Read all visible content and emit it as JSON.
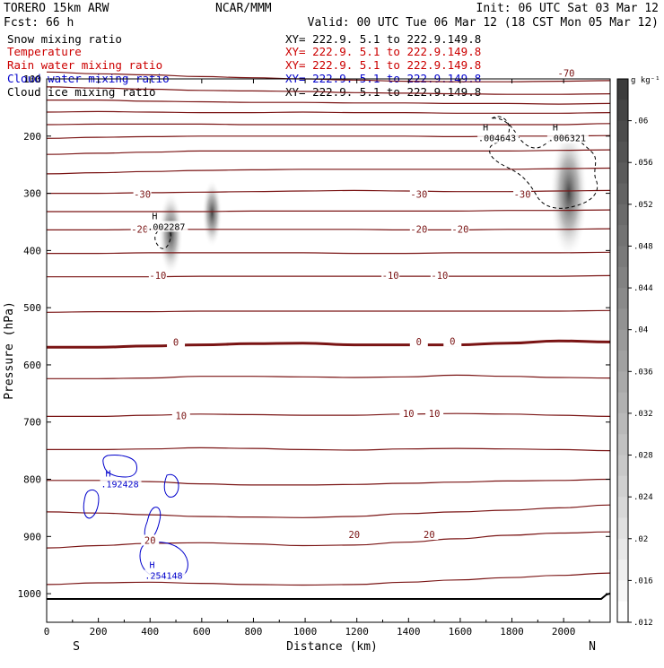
{
  "header": {
    "model": "TORERO  15km ARW",
    "center": "NCAR/MMM",
    "init": "Init: 06 UTC Sat 03 Mar 12",
    "fcst": "Fcst:   66 h",
    "valid": "Valid: 00 UTC Tue 06 Mar 12 (18 CST Mon 05 Mar 12)"
  },
  "fields": [
    {
      "name": "Snow mixing ratio",
      "xy": "XY= 222.9.  5.1 to 222.9.149.8",
      "color": "#000000"
    },
    {
      "name": "Temperature",
      "xy": "XY= 222.9.  5.1 to 222.9.149.8",
      "color": "#cc0000"
    },
    {
      "name": "Rain water mixing ratio",
      "xy": "XY= 222.9.  5.1 to 222.9.149.8",
      "color": "#cc0000"
    },
    {
      "name": "Cloud water mixing ratio",
      "xy": "XY= 222.9.  5.1 to 222.9.149.8",
      "color": "#0000cc"
    },
    {
      "name": "Cloud ice mixing ratio",
      "xy": "XY= 222.9.  5.1 to 222.9.149.8",
      "color": "#000000"
    }
  ],
  "colorbar": {
    "unit": "g kg⁻¹",
    "labels": [
      ".06",
      ".056",
      ".052",
      ".048",
      ".044",
      ".04",
      ".036",
      ".032",
      ".028",
      ".024",
      ".02",
      ".016",
      ".012"
    ]
  },
  "chart_data": {
    "type": "contour",
    "xlabel": "Distance (km)",
    "ylabel": "Pressure (hPa)",
    "xlim": [
      0,
      2180
    ],
    "ylim": [
      1050,
      100
    ],
    "x_ticks": [
      0,
      200,
      400,
      600,
      800,
      1000,
      1200,
      1400,
      1600,
      1800,
      2000
    ],
    "y_ticks": [
      100,
      200,
      300,
      400,
      500,
      600,
      700,
      800,
      900,
      1000
    ],
    "x_tick_labels": [
      "0",
      "200",
      "400",
      "600",
      "800",
      "1000",
      "1200",
      "1400",
      "1600",
      "1800",
      "2000"
    ],
    "y_tick_labels": [
      "100",
      "200",
      "300",
      "400",
      "500",
      "600",
      "700",
      "800",
      "900",
      "1000"
    ],
    "endpoint_labels": {
      "left": "S",
      "right": "N"
    },
    "temperature_contours": [
      {
        "level": -70,
        "p": [
          88,
          91,
          93,
          96,
          98,
          100,
          102,
          104,
          105,
          105,
          104,
          103
        ]
      },
      {
        "level": -65,
        "p": [
          114,
          116,
          118,
          120,
          121,
          122,
          124,
          125,
          126,
          127,
          127,
          126
        ]
      },
      {
        "level": -60,
        "p": [
          137,
          137,
          139,
          140,
          141,
          141,
          142,
          142,
          143,
          143,
          144,
          143
        ]
      },
      {
        "level": -55,
        "p": [
          158,
          157,
          158,
          159,
          159,
          158,
          159,
          159,
          160,
          160,
          160,
          159
        ]
      },
      {
        "level": -50,
        "p": [
          180,
          179,
          179,
          179,
          180,
          180,
          180,
          180,
          180,
          180,
          180,
          178
        ]
      },
      {
        "level": -45,
        "p": [
          204,
          202,
          201,
          200,
          200,
          200,
          200,
          200,
          201,
          200,
          200,
          199
        ]
      },
      {
        "level": -40,
        "p": [
          232,
          230,
          228,
          226,
          226,
          226,
          226,
          226,
          226,
          226,
          225,
          224
        ]
      },
      {
        "level": -35,
        "p": [
          266,
          264,
          262,
          260,
          259,
          258,
          258,
          258,
          258,
          258,
          257,
          256
        ]
      },
      {
        "level": -30,
        "p": [
          300,
          300,
          299,
          298,
          297,
          296,
          295,
          296,
          297,
          297,
          296,
          295
        ]
      },
      {
        "level": -25,
        "p": [
          332,
          332,
          332,
          332,
          331,
          331,
          331,
          331,
          331,
          330,
          330,
          329
        ]
      },
      {
        "level": -20,
        "p": [
          364,
          364,
          363,
          363,
          363,
          363,
          363,
          364,
          364,
          363,
          363,
          362
        ]
      },
      {
        "level": -15,
        "p": [
          405,
          405,
          404,
          404,
          404,
          404,
          405,
          405,
          404,
          404,
          404,
          403
        ]
      },
      {
        "level": -10,
        "p": [
          446,
          446,
          446,
          445,
          445,
          445,
          445,
          445,
          445,
          445,
          445,
          444
        ]
      },
      {
        "level": -5,
        "p": [
          508,
          507,
          507,
          506,
          506,
          506,
          506,
          506,
          506,
          506,
          506,
          505
        ]
      },
      {
        "level": 0,
        "p": [
          569,
          569,
          567,
          565,
          563,
          562,
          565,
          565,
          565,
          562,
          558,
          560
        ]
      },
      {
        "level": 5,
        "p": [
          624,
          624,
          623,
          620,
          620,
          621,
          622,
          621,
          618,
          620,
          622,
          623
        ]
      },
      {
        "level": 10,
        "p": [
          690,
          690,
          688,
          686,
          687,
          688,
          688,
          686,
          685,
          686,
          688,
          690
        ]
      },
      {
        "level": 15,
        "p": [
          748,
          748,
          747,
          745,
          746,
          748,
          749,
          747,
          746,
          747,
          748,
          750
        ]
      },
      {
        "level": 20,
        "p": [
          802,
          802,
          804,
          808,
          810,
          810,
          809,
          807,
          805,
          803,
          802,
          800
        ]
      },
      {
        "level": 25,
        "p": [
          857,
          859,
          862,
          865,
          866,
          867,
          865,
          860,
          857,
          854,
          850,
          845
        ]
      },
      {
        "level": 30,
        "p": [
          920,
          916,
          912,
          911,
          913,
          916,
          915,
          910,
          904,
          898,
          894,
          892
        ]
      },
      {
        "level": 35,
        "p": [
          984,
          981,
          980,
          982,
          984,
          985,
          984,
          980,
          976,
          972,
          968,
          964
        ]
      }
    ],
    "contour_labels": [
      {
        "text": "-70",
        "x": 2010,
        "p": 91
      },
      {
        "text": "-30",
        "x": 370,
        "p": 303
      },
      {
        "text": "-30",
        "x": 1440,
        "p": 303
      },
      {
        "text": "-30",
        "x": 1840,
        "p": 303
      },
      {
        "text": "-20",
        "x": 360,
        "p": 364
      },
      {
        "text": "-20",
        "x": 1440,
        "p": 364
      },
      {
        "text": "-20",
        "x": 1600,
        "p": 364
      },
      {
        "text": "-10",
        "x": 430,
        "p": 445
      },
      {
        "text": "-10",
        "x": 1330,
        "p": 445
      },
      {
        "text": "-10",
        "x": 1520,
        "p": 445
      },
      {
        "text": "0",
        "x": 500,
        "p": 562
      },
      {
        "text": "0",
        "x": 1440,
        "p": 561
      },
      {
        "text": "0",
        "x": 1570,
        "p": 560
      },
      {
        "text": "10",
        "x": 520,
        "p": 690
      },
      {
        "text": "10",
        "x": 1400,
        "p": 686
      },
      {
        "text": "10",
        "x": 1500,
        "p": 686
      },
      {
        "text": "20",
        "x": 400,
        "p": 908
      },
      {
        "text": "20",
        "x": 1190,
        "p": 898
      },
      {
        "text": "20",
        "x": 1480,
        "p": 898
      }
    ],
    "maxima_labels": [
      {
        "marker": "H",
        "value": ".002287",
        "x": 470,
        "p": 350,
        "color": "#000000"
      },
      {
        "marker": "H",
        "value": ".004643",
        "x": 1750,
        "p": 195,
        "color": "#000000"
      },
      {
        "marker": "H",
        "value": ".006321",
        "x": 2020,
        "p": 195,
        "color": "#000000"
      },
      {
        "marker": "H",
        "value": ".192428",
        "x": 290,
        "p": 800,
        "color": "#0000cc"
      },
      {
        "marker": "H",
        "value": ".254148",
        "x": 460,
        "p": 960,
        "color": "#0000cc"
      }
    ],
    "snow_shading": [
      {
        "x": 2020,
        "p": 300,
        "max": 0.06
      },
      {
        "x": 480,
        "p": 370,
        "max": 0.03
      },
      {
        "x": 640,
        "p": 335,
        "max": 0.02
      }
    ]
  }
}
